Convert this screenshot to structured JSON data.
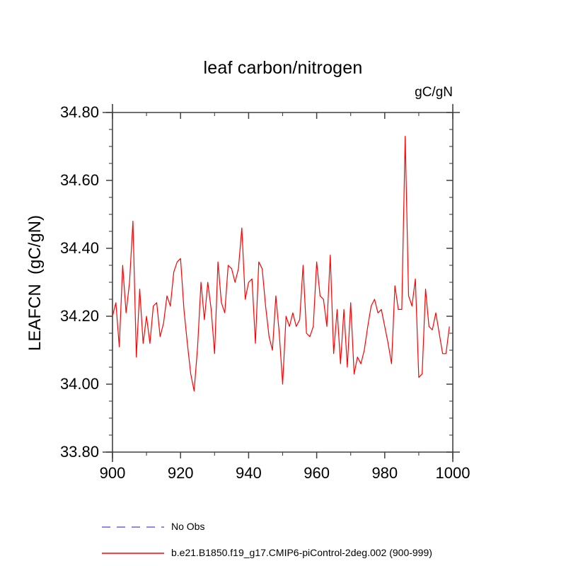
{
  "chart_data": {
    "type": "line",
    "title": "leaf carbon/nitrogen",
    "units_label": "gC/gN",
    "ylabel": "LEAFCN  (gC/gN)",
    "xlabel": "",
    "xlim": [
      900,
      1000
    ],
    "ylim": [
      33.8,
      34.8
    ],
    "grid": false,
    "axis_color": "#404040",
    "text_color": "#000000",
    "x_ticks": [
      {
        "v": 900,
        "label": "900"
      },
      {
        "v": 920,
        "label": "920"
      },
      {
        "v": 940,
        "label": "940"
      },
      {
        "v": 960,
        "label": "960"
      },
      {
        "v": 980,
        "label": "980"
      },
      {
        "v": 1000,
        "label": "1000"
      }
    ],
    "x_minor_step": 10,
    "y_ticks": [
      {
        "v": 34.8,
        "label": "34.80"
      },
      {
        "v": 34.6,
        "label": "34.60"
      },
      {
        "v": 34.4,
        "label": "34.40"
      },
      {
        "v": 34.2,
        "label": "34.20"
      },
      {
        "v": 34.0,
        "label": "34.00"
      },
      {
        "v": 33.8,
        "label": "33.80"
      }
    ],
    "y_minor_step": 0.05,
    "legend": [
      {
        "label": "No Obs",
        "color": "#6565db",
        "style": "dashed"
      },
      {
        "label": "b.e21.B1850.f19_g17.CMIP6-piControl-2deg.002 (900-999)",
        "color": "#ff0000",
        "style": "solid"
      }
    ],
    "series": [
      {
        "name": "b.e21.B1850.f19_g17.CMIP6-piControl-2deg.002 (900-999)",
        "color": "#ff0000",
        "x": [
          900,
          901,
          902,
          903,
          904,
          905,
          906,
          907,
          908,
          909,
          910,
          911,
          912,
          913,
          914,
          915,
          916,
          917,
          918,
          919,
          920,
          921,
          922,
          923,
          924,
          925,
          926,
          927,
          928,
          929,
          930,
          931,
          932,
          933,
          934,
          935,
          936,
          937,
          938,
          939,
          940,
          941,
          942,
          943,
          944,
          945,
          946,
          947,
          948,
          949,
          950,
          951,
          952,
          953,
          954,
          955,
          956,
          957,
          958,
          959,
          960,
          961,
          962,
          963,
          964,
          965,
          966,
          967,
          968,
          969,
          970,
          971,
          972,
          973,
          974,
          975,
          976,
          977,
          978,
          979,
          980,
          981,
          982,
          983,
          984,
          985,
          986,
          987,
          988,
          989,
          990,
          991,
          992,
          993,
          994,
          995,
          996,
          997,
          998,
          999
        ],
        "values": [
          34.2,
          34.24,
          34.11,
          34.35,
          34.21,
          34.3,
          34.48,
          34.08,
          34.28,
          34.12,
          34.2,
          34.12,
          34.23,
          34.24,
          34.14,
          34.18,
          34.26,
          34.23,
          34.33,
          34.36,
          34.37,
          34.22,
          34.12,
          34.03,
          33.98,
          34.11,
          34.3,
          34.19,
          34.3,
          34.22,
          34.09,
          34.36,
          34.24,
          34.21,
          34.35,
          34.34,
          34.3,
          34.34,
          34.46,
          34.25,
          34.3,
          34.31,
          34.12,
          34.36,
          34.34,
          34.23,
          34.14,
          34.1,
          34.26,
          34.15,
          34.0,
          34.2,
          34.17,
          34.21,
          34.17,
          34.19,
          34.35,
          34.15,
          34.14,
          34.17,
          34.36,
          34.26,
          34.25,
          34.17,
          34.38,
          34.09,
          34.22,
          34.06,
          34.22,
          34.05,
          34.24,
          34.03,
          34.08,
          34.06,
          34.1,
          34.17,
          34.23,
          34.25,
          34.21,
          34.22,
          34.17,
          34.12,
          34.06,
          34.29,
          34.22,
          34.22,
          34.73,
          34.26,
          34.23,
          34.31,
          34.02,
          34.03,
          34.28,
          34.17,
          34.16,
          34.21,
          34.15,
          34.09,
          34.09,
          34.17
        ]
      }
    ]
  }
}
